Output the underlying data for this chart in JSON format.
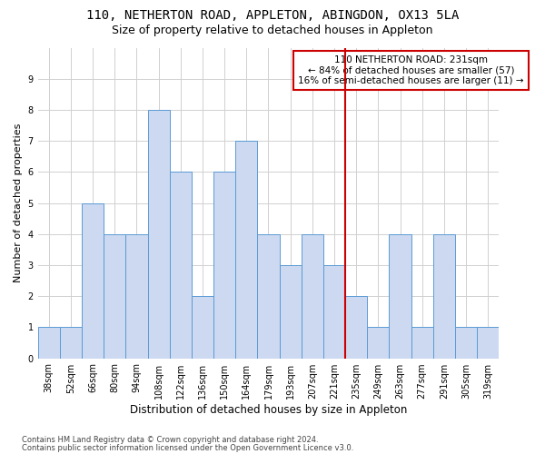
{
  "title1": "110, NETHERTON ROAD, APPLETON, ABINGDON, OX13 5LA",
  "title2": "Size of property relative to detached houses in Appleton",
  "xlabel": "Distribution of detached houses by size in Appleton",
  "ylabel": "Number of detached properties",
  "footer1": "Contains HM Land Registry data © Crown copyright and database right 2024.",
  "footer2": "Contains public sector information licensed under the Open Government Licence v3.0.",
  "bin_labels": [
    "38sqm",
    "52sqm",
    "66sqm",
    "80sqm",
    "94sqm",
    "108sqm",
    "122sqm",
    "136sqm",
    "150sqm",
    "164sqm",
    "179sqm",
    "193sqm",
    "207sqm",
    "221sqm",
    "235sqm",
    "249sqm",
    "263sqm",
    "277sqm",
    "291sqm",
    "305sqm",
    "319sqm"
  ],
  "bar_values": [
    1,
    1,
    5,
    4,
    4,
    8,
    6,
    2,
    6,
    7,
    4,
    3,
    4,
    3,
    2,
    1,
    4,
    1,
    4,
    1,
    1
  ],
  "bar_color": "#ccd9f0",
  "bar_edge_color": "#5b9bd5",
  "annotation_line1": "110 NETHERTON ROAD: 231sqm",
  "annotation_line2": "← 84% of detached houses are smaller (57)",
  "annotation_line3": "16% of semi-detached houses are larger (11) →",
  "vline_color": "#cc0000",
  "annotation_box_color": "#cc0000",
  "ylim": [
    0,
    10
  ],
  "yticks": [
    0,
    1,
    2,
    3,
    4,
    5,
    6,
    7,
    8,
    9,
    10
  ],
  "grid_color": "#d0d0d0",
  "bg_color": "#ffffff",
  "title1_fontsize": 10,
  "title2_fontsize": 9,
  "ylabel_fontsize": 8,
  "xlabel_fontsize": 8.5,
  "tick_fontsize": 7,
  "annotation_fontsize": 7.5,
  "footer_fontsize": 6
}
